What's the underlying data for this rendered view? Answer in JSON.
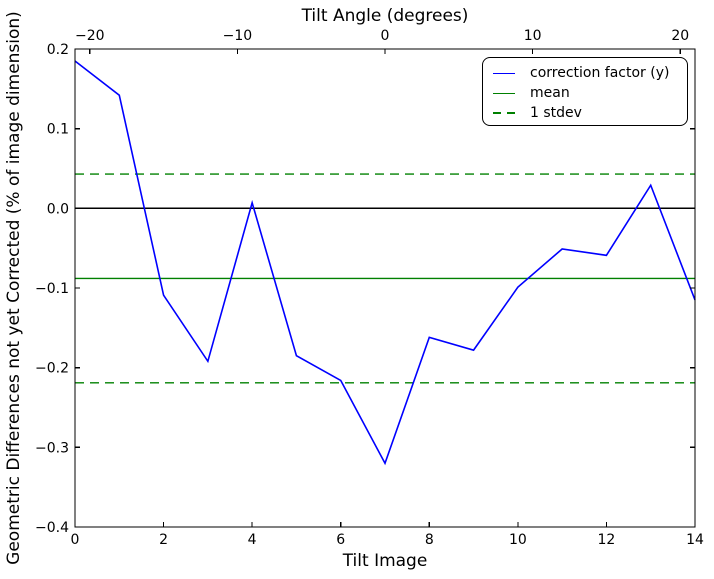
{
  "chart_data": {
    "type": "line",
    "xlabel": "Tilt Image",
    "ylabel": "Geometric Differences not yet Corrected (% of image dimension)",
    "top_axis": {
      "label": "Tilt Angle (degrees)",
      "ticks": [
        -20,
        -10,
        0,
        10,
        20
      ],
      "range": [
        -21,
        21
      ]
    },
    "xlim": [
      0,
      14
    ],
    "ylim": [
      -0.4,
      0.2
    ],
    "xticks": [
      0,
      2,
      4,
      6,
      8,
      10,
      12,
      14
    ],
    "yticks": [
      0.2,
      0.1,
      0.0,
      -0.1,
      -0.2,
      -0.3,
      -0.4
    ],
    "x": [
      0,
      1,
      2,
      3,
      4,
      5,
      6,
      7,
      8,
      9,
      10,
      11,
      12,
      13,
      14
    ],
    "series": [
      {
        "name": "correction factor (y)",
        "kind": "line",
        "color": "#0000ff",
        "style": "solid",
        "values": [
          0.185,
          0.142,
          -0.109,
          -0.192,
          0.007,
          -0.185,
          -0.216,
          -0.32,
          -0.162,
          -0.178,
          -0.099,
          -0.051,
          -0.059,
          0.029,
          -0.115
        ]
      },
      {
        "name": "mean",
        "kind": "hline",
        "color": "#008000",
        "style": "solid",
        "value": -0.088
      },
      {
        "name": "1 stdev",
        "kind": "hlines",
        "color": "#008000",
        "style": "dashed",
        "values": [
          0.043,
          -0.219
        ]
      }
    ],
    "zero_line": {
      "value": 0.0,
      "color": "#000000"
    },
    "legend": {
      "position": "upper right"
    },
    "grid": false
  },
  "colors": {
    "background": "#ffffff",
    "axis": "#000000"
  }
}
